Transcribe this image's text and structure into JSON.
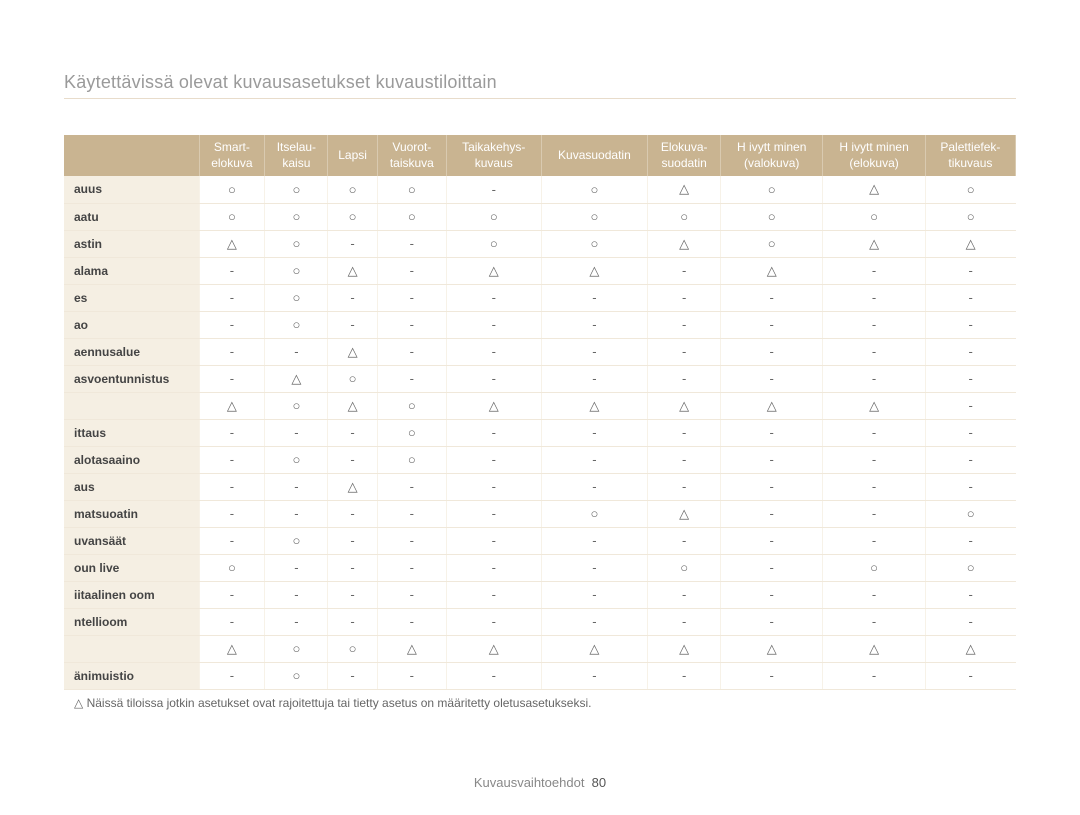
{
  "title": "Käytettävissä olevat kuvausasetukset kuvaustiloittain",
  "columns": [
    "Smart-\nelokuva",
    "Itselau-\nkaisu",
    "Lapsi",
    "Vuorot-\ntaiskuva",
    "Taikakehys-\nkuvaus",
    "Kuvasuodatin",
    "Elokuva-\nsuodatin",
    "H ivytt minen\n(valokuva)",
    "H ivytt minen\n(elokuva)",
    "Palettiefek-\ntikuvaus"
  ],
  "marks": {
    "circle": "○",
    "triangle": "△",
    "dash": "-"
  },
  "rows": [
    {
      "label": "auus",
      "cells": [
        "○",
        "○",
        "○",
        "○",
        "-",
        "○",
        "△",
        "○",
        "△",
        "○"
      ]
    },
    {
      "label": "aatu",
      "cells": [
        "○",
        "○",
        "○",
        "○",
        "○",
        "○",
        "○",
        "○",
        "○",
        "○"
      ]
    },
    {
      "label": "astin",
      "cells": [
        "△",
        "○",
        "-",
        "-",
        "○",
        "○",
        "△",
        "○",
        "△",
        "△"
      ]
    },
    {
      "label": "alama",
      "cells": [
        "-",
        "○",
        "△",
        "-",
        "△",
        "△",
        "-",
        "△",
        "-",
        "-"
      ]
    },
    {
      "label": "es",
      "cells": [
        "-",
        "○",
        "-",
        "-",
        "-",
        "-",
        "-",
        "-",
        "-",
        "-"
      ]
    },
    {
      "label": "ao",
      "cells": [
        "-",
        "○",
        "-",
        "-",
        "-",
        "-",
        "-",
        "-",
        "-",
        "-"
      ]
    },
    {
      "label": "aennusalue",
      "cells": [
        "-",
        "-",
        "△",
        "-",
        "-",
        "-",
        "-",
        "-",
        "-",
        "-"
      ]
    },
    {
      "label": "asvoentunnistus",
      "cells": [
        "-",
        "△",
        "○",
        "-",
        "-",
        "-",
        "-",
        "-",
        "-",
        "-"
      ]
    },
    {
      "label": "",
      "cells": [
        "△",
        "○",
        "△",
        "○",
        "△",
        "△",
        "△",
        "△",
        "△",
        "-"
      ]
    },
    {
      "label": "ittaus",
      "cells": [
        "-",
        "-",
        "-",
        "○",
        "-",
        "-",
        "-",
        "-",
        "-",
        "-"
      ]
    },
    {
      "label": "alotasaaino",
      "cells": [
        "-",
        "○",
        "-",
        "○",
        "-",
        "-",
        "-",
        "-",
        "-",
        "-"
      ]
    },
    {
      "label": "aus",
      "cells": [
        "-",
        "-",
        "△",
        "-",
        "-",
        "-",
        "-",
        "-",
        "-",
        "-"
      ]
    },
    {
      "label": "matsuoatin",
      "cells": [
        "-",
        "-",
        "-",
        "-",
        "-",
        "○",
        "△",
        "-",
        "-",
        "○"
      ]
    },
    {
      "label": "uvansäät",
      "cells": [
        "-",
        "○",
        "-",
        "-",
        "-",
        "-",
        "-",
        "-",
        "-",
        "-"
      ]
    },
    {
      "label": "oun live",
      "cells": [
        "○",
        "-",
        "-",
        "-",
        "-",
        "-",
        "○",
        "-",
        "○",
        "○"
      ]
    },
    {
      "label": "iitaalinen oom",
      "cells": [
        "-",
        "-",
        "-",
        "-",
        "-",
        "-",
        "-",
        "-",
        "-",
        "-"
      ]
    },
    {
      "label": "ntellioom",
      "cells": [
        "-",
        "-",
        "-",
        "-",
        "-",
        "-",
        "-",
        "-",
        "-",
        "-"
      ]
    },
    {
      "label": "",
      "cells": [
        "△",
        "○",
        "○",
        "△",
        "△",
        "△",
        "△",
        "△",
        "△",
        "△"
      ]
    },
    {
      "label": "änimuistio",
      "cells": [
        "-",
        "○",
        "-",
        "-",
        "-",
        "-",
        "-",
        "-",
        "-",
        "-"
      ]
    }
  ],
  "footnote": "△ Näissä tiloissa jotkin asetukset ovat rajoitettuja tai tietty asetus on määritetty oletusasetukseksi.",
  "footer_label": "Kuvausvaihtoehdot",
  "footer_page": "80"
}
